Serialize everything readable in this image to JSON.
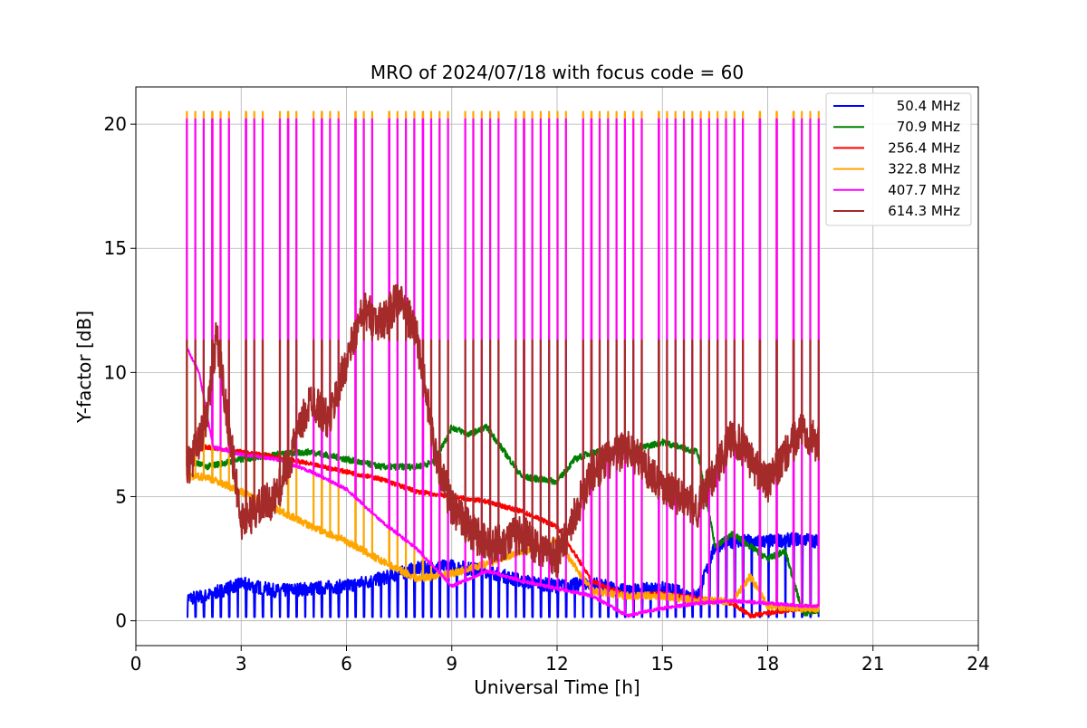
{
  "chart_data": {
    "type": "line",
    "title": "MRO of 2024/07/18 with focus code = 60",
    "xlabel": "Universal Time [h]",
    "ylabel": "Y-factor [dB]",
    "xlim": [
      0,
      24
    ],
    "ylim": [
      -1,
      21.5
    ],
    "xticks": [
      0,
      3,
      6,
      9,
      12,
      15,
      18,
      21,
      24
    ],
    "yticks": [
      0,
      5,
      10,
      15,
      20
    ],
    "grid": true,
    "legend_position": "top-right",
    "colors": {
      "50.4 MHz": "#0000ff",
      "70.9 MHz": "#008000",
      "256.4 MHz": "#ff0000",
      "322.8 MHz": "#ffa500",
      "407.7 MHz": "#ff00ff",
      "614.3 MHz": "#a52a2a"
    },
    "series": [
      {
        "name": "50.4 MHz",
        "x": [
          1.45,
          2,
          3,
          4,
          5,
          6,
          7,
          8,
          9,
          10,
          11,
          12,
          13,
          14,
          15,
          16,
          16.5,
          17,
          18,
          19,
          19.45
        ],
        "values": [
          0.9,
          1.0,
          1.5,
          1.2,
          1.3,
          1.4,
          1.7,
          2.1,
          2.2,
          2.0,
          1.6,
          1.4,
          1.5,
          1.2,
          1.3,
          1.0,
          3.0,
          3.2,
          3.2,
          3.3,
          3.2
        ]
      },
      {
        "name": "70.9 MHz",
        "x": [
          1.45,
          2,
          3,
          4,
          5,
          6,
          7,
          8,
          8.5,
          9,
          9.5,
          10,
          10.5,
          11,
          12,
          12.5,
          13,
          14,
          15,
          16,
          16.5,
          17,
          18,
          18.5,
          19,
          19.45
        ],
        "values": [
          6.5,
          6.2,
          6.5,
          6.7,
          6.8,
          6.5,
          6.2,
          6.2,
          6.4,
          7.8,
          7.5,
          7.8,
          6.8,
          5.8,
          5.6,
          6.5,
          6.8,
          6.8,
          7.2,
          6.8,
          3.0,
          3.5,
          2.5,
          2.8,
          0.3,
          0.4
        ]
      },
      {
        "name": "256.4 MHz",
        "x": [
          1.45,
          2,
          3,
          4,
          5,
          6,
          7,
          8,
          9,
          10,
          11,
          12,
          13,
          14,
          15,
          16,
          17,
          17.5,
          18,
          19,
          19.45
        ],
        "values": [
          6.5,
          7.0,
          6.8,
          6.6,
          6.3,
          6.0,
          5.7,
          5.2,
          5.0,
          4.8,
          4.4,
          3.8,
          1.6,
          1.0,
          1.1,
          0.9,
          0.7,
          0.2,
          0.3,
          0.5,
          0.4
        ]
      },
      {
        "name": "322.8 MHz",
        "x": [
          1.45,
          2,
          3,
          4,
          5,
          6,
          7,
          8,
          9,
          10,
          11,
          12,
          13,
          14,
          15,
          16,
          17,
          17.5,
          18,
          19,
          19.45
        ],
        "values": [
          5.8,
          5.8,
          5.2,
          4.5,
          3.8,
          3.2,
          2.4,
          1.7,
          1.9,
          2.3,
          2.8,
          3.2,
          1.2,
          1.0,
          1.0,
          0.8,
          0.8,
          1.8,
          0.6,
          0.5,
          0.5
        ]
      },
      {
        "name": "407.7 MHz",
        "x": [
          1.45,
          1.8,
          2.2,
          3,
          4,
          5,
          6,
          7,
          8,
          9,
          10,
          11,
          12,
          13,
          14,
          15,
          16,
          17,
          18,
          19,
          19.45
        ],
        "values": [
          11.0,
          10.0,
          7.0,
          6.7,
          6.5,
          6.0,
          5.3,
          4.0,
          2.9,
          1.4,
          2.0,
          1.6,
          1.3,
          1.0,
          0.2,
          0.5,
          0.7,
          0.8,
          0.7,
          0.6,
          0.6
        ]
      },
      {
        "name": "614.3 MHz",
        "x": [
          1.45,
          2,
          2.3,
          3,
          4,
          5,
          5.5,
          6,
          6.5,
          7,
          7.5,
          8,
          8.5,
          9,
          10,
          11,
          12,
          13,
          14,
          15,
          16,
          17,
          18,
          19,
          19.45
        ],
        "values": [
          6.0,
          8.0,
          11.5,
          4.0,
          5.0,
          9.0,
          8.0,
          10.5,
          12.5,
          12.0,
          13.0,
          11.5,
          7.0,
          4.5,
          3.0,
          3.5,
          2.5,
          6.0,
          7.0,
          5.5,
          4.5,
          7.5,
          5.5,
          7.8,
          7.0
        ]
      }
    ],
    "sweep_spikes": {
      "start": 1.45,
      "end": 19.45,
      "count": 75,
      "peaks": {
        "322.8 MHz": 20.5,
        "407.7 MHz": 20.2,
        "614.3 MHz": 11.3
      }
    }
  }
}
